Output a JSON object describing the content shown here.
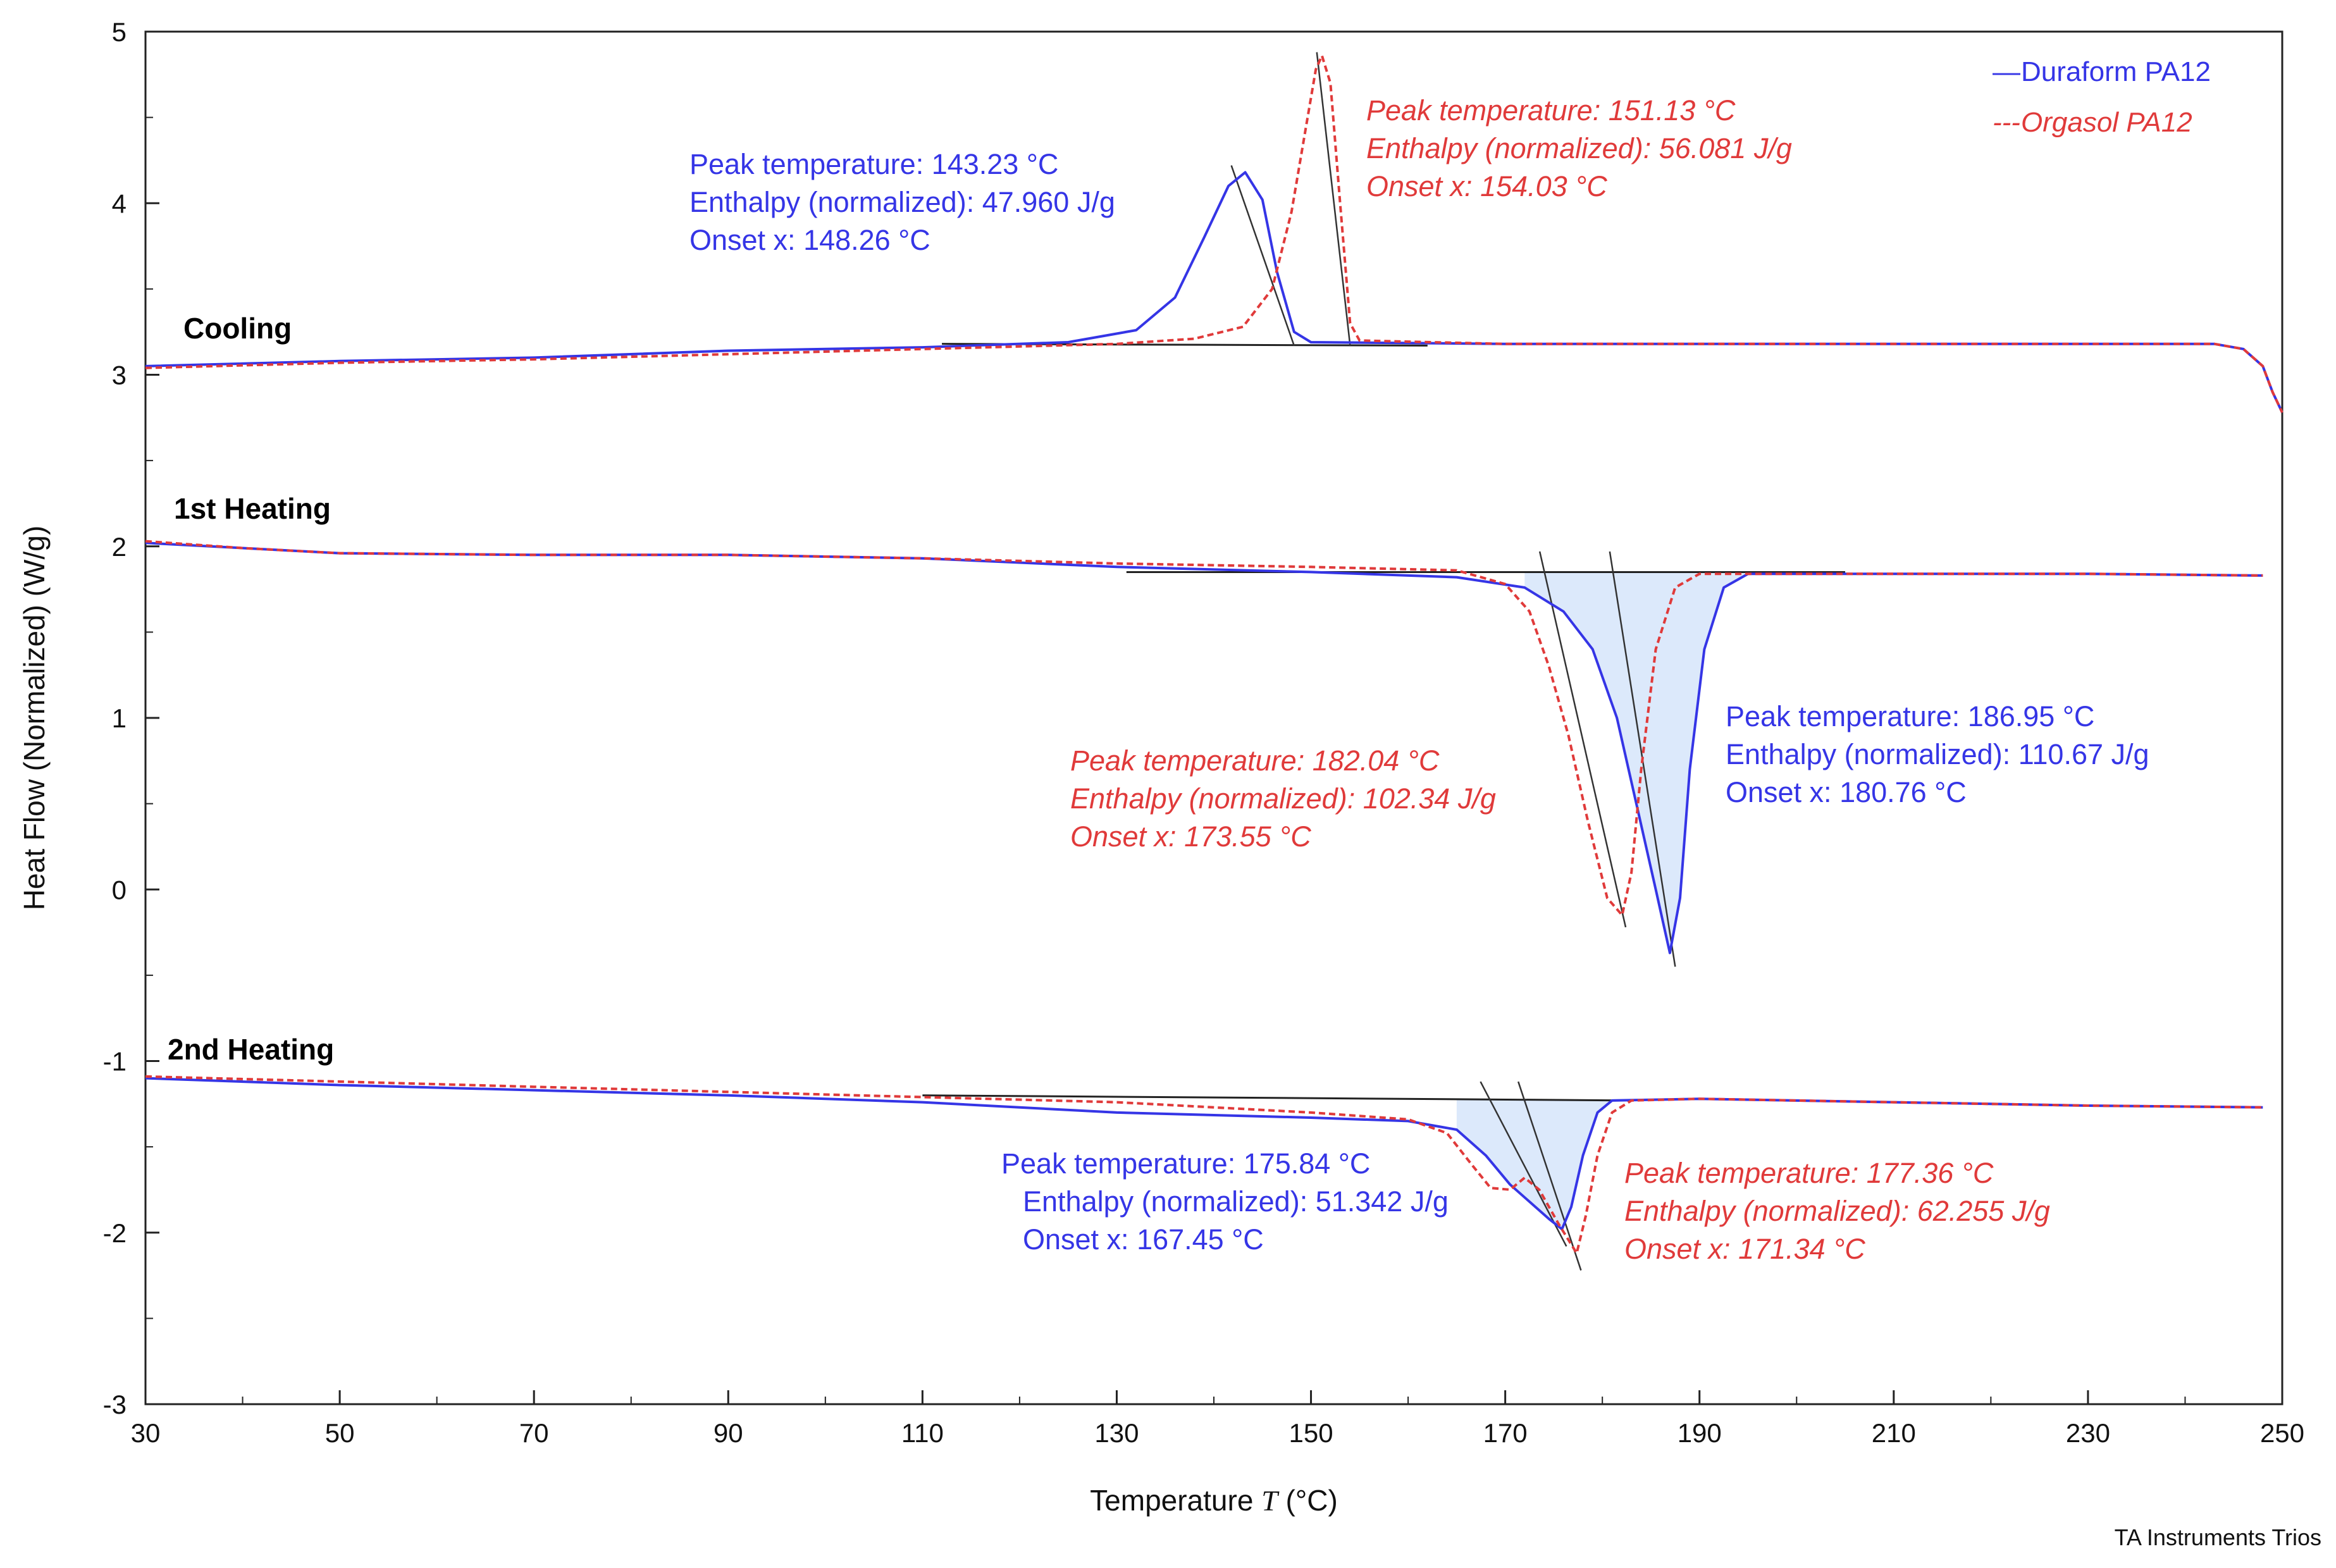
{
  "chart_data": {
    "type": "line",
    "xlabel": "Temperature",
    "xlabel_symbol": "T",
    "xlabel_unit": "(°C)",
    "ylabel": "Heat Flow (Normalized)  (W/g)",
    "xlim": [
      30,
      250
    ],
    "ylim": [
      -3,
      5
    ],
    "x_ticks": [
      30,
      50,
      70,
      90,
      110,
      130,
      150,
      170,
      190,
      210,
      230,
      250
    ],
    "y_ticks": [
      -3,
      -2,
      -1,
      0,
      1,
      2,
      3,
      4,
      5
    ],
    "grid": false,
    "legend_position": "top-right",
    "legend": [
      {
        "marker": "—",
        "label": "Duraform PA12",
        "color": "#3535e6",
        "style": "solid"
      },
      {
        "marker": "---",
        "label": "Orgasol PA12",
        "color": "#e03a3a",
        "style": "dashed"
      }
    ],
    "segment_labels": [
      "Cooling",
      "1st Heating",
      "2nd Heating"
    ],
    "series": [
      {
        "name": "Duraform PA12",
        "segment": "Cooling",
        "color": "#3535e6",
        "points": [
          [
            30,
            3.05
          ],
          [
            50,
            3.08
          ],
          [
            70,
            3.1
          ],
          [
            90,
            3.14
          ],
          [
            110,
            3.16
          ],
          [
            125,
            3.19
          ],
          [
            132,
            3.26
          ],
          [
            136,
            3.45
          ],
          [
            139,
            3.8
          ],
          [
            141.5,
            4.1
          ],
          [
            143.23,
            4.18
          ],
          [
            145,
            4.02
          ],
          [
            146.5,
            3.6
          ],
          [
            148.26,
            3.25
          ],
          [
            150,
            3.19
          ],
          [
            170,
            3.18
          ],
          [
            200,
            3.18
          ],
          [
            230,
            3.18
          ],
          [
            243,
            3.18
          ],
          [
            246,
            3.15
          ],
          [
            248,
            3.05
          ],
          [
            249,
            2.9
          ],
          [
            250,
            2.78
          ]
        ]
      },
      {
        "name": "Orgasol PA12",
        "segment": "Cooling",
        "color": "#e03a3a",
        "points": [
          [
            30,
            3.04
          ],
          [
            50,
            3.07
          ],
          [
            70,
            3.09
          ],
          [
            90,
            3.12
          ],
          [
            110,
            3.15
          ],
          [
            130,
            3.18
          ],
          [
            138,
            3.21
          ],
          [
            143,
            3.28
          ],
          [
            146,
            3.5
          ],
          [
            148,
            3.95
          ],
          [
            149.5,
            4.45
          ],
          [
            150.5,
            4.78
          ],
          [
            151.13,
            4.86
          ],
          [
            152,
            4.7
          ],
          [
            153,
            4.0
          ],
          [
            154.03,
            3.3
          ],
          [
            155,
            3.2
          ],
          [
            170,
            3.18
          ],
          [
            200,
            3.18
          ],
          [
            230,
            3.18
          ],
          [
            243,
            3.18
          ],
          [
            246,
            3.15
          ],
          [
            248,
            3.05
          ],
          [
            249,
            2.9
          ],
          [
            250,
            2.78
          ]
        ]
      },
      {
        "name": "Duraform PA12",
        "segment": "1st Heating",
        "color": "#3535e6",
        "points": [
          [
            30,
            2.02
          ],
          [
            40,
            1.99
          ],
          [
            50,
            1.96
          ],
          [
            70,
            1.95
          ],
          [
            90,
            1.95
          ],
          [
            110,
            1.93
          ],
          [
            130,
            1.88
          ],
          [
            150,
            1.85
          ],
          [
            165,
            1.82
          ],
          [
            172,
            1.76
          ],
          [
            176,
            1.62
          ],
          [
            179,
            1.4
          ],
          [
            181.5,
            1.0
          ],
          [
            183.5,
            0.5
          ],
          [
            185.5,
            0.0
          ],
          [
            186.95,
            -0.37
          ],
          [
            188,
            -0.05
          ],
          [
            189,
            0.7
          ],
          [
            190.5,
            1.4
          ],
          [
            192.5,
            1.76
          ],
          [
            195,
            1.84
          ],
          [
            210,
            1.84
          ],
          [
            230,
            1.84
          ],
          [
            248,
            1.83
          ]
        ]
      },
      {
        "name": "Orgasol PA12",
        "segment": "1st Heating",
        "color": "#e03a3a",
        "points": [
          [
            30,
            2.03
          ],
          [
            40,
            1.99
          ],
          [
            50,
            1.96
          ],
          [
            70,
            1.95
          ],
          [
            90,
            1.95
          ],
          [
            110,
            1.93
          ],
          [
            130,
            1.9
          ],
          [
            150,
            1.88
          ],
          [
            165,
            1.86
          ],
          [
            170,
            1.78
          ],
          [
            172.5,
            1.62
          ],
          [
            174.5,
            1.3
          ],
          [
            176.5,
            0.9
          ],
          [
            178.5,
            0.4
          ],
          [
            180.5,
            -0.05
          ],
          [
            182.04,
            -0.15
          ],
          [
            183,
            0.1
          ],
          [
            184,
            0.7
          ],
          [
            185.5,
            1.4
          ],
          [
            187.5,
            1.76
          ],
          [
            190,
            1.84
          ],
          [
            210,
            1.84
          ],
          [
            230,
            1.84
          ],
          [
            248,
            1.83
          ]
        ]
      },
      {
        "name": "Duraform PA12",
        "segment": "2nd Heating",
        "color": "#3535e6",
        "points": [
          [
            30,
            -1.1
          ],
          [
            50,
            -1.14
          ],
          [
            70,
            -1.17
          ],
          [
            90,
            -1.2
          ],
          [
            110,
            -1.24
          ],
          [
            130,
            -1.3
          ],
          [
            150,
            -1.33
          ],
          [
            160,
            -1.35
          ],
          [
            165,
            -1.4
          ],
          [
            168,
            -1.55
          ],
          [
            170.5,
            -1.72
          ],
          [
            172.5,
            -1.82
          ],
          [
            174.5,
            -1.92
          ],
          [
            175.84,
            -1.98
          ],
          [
            176.8,
            -1.85
          ],
          [
            178,
            -1.55
          ],
          [
            179.5,
            -1.3
          ],
          [
            181,
            -1.23
          ],
          [
            190,
            -1.22
          ],
          [
            210,
            -1.24
          ],
          [
            230,
            -1.26
          ],
          [
            248,
            -1.27
          ]
        ]
      },
      {
        "name": "Orgasol PA12",
        "segment": "2nd Heating",
        "color": "#e03a3a",
        "points": [
          [
            30,
            -1.09
          ],
          [
            50,
            -1.12
          ],
          [
            70,
            -1.15
          ],
          [
            90,
            -1.18
          ],
          [
            110,
            -1.21
          ],
          [
            130,
            -1.24
          ],
          [
            150,
            -1.3
          ],
          [
            160,
            -1.34
          ],
          [
            164,
            -1.42
          ],
          [
            166.5,
            -1.6
          ],
          [
            168.5,
            -1.74
          ],
          [
            170.5,
            -1.75
          ],
          [
            172,
            -1.68
          ],
          [
            173.5,
            -1.75
          ],
          [
            175.5,
            -1.95
          ],
          [
            177.36,
            -2.12
          ],
          [
            178.3,
            -1.9
          ],
          [
            179.5,
            -1.55
          ],
          [
            181,
            -1.3
          ],
          [
            183,
            -1.23
          ],
          [
            190,
            -1.22
          ],
          [
            210,
            -1.24
          ],
          [
            230,
            -1.26
          ],
          [
            248,
            -1.27
          ]
        ]
      }
    ],
    "baselines": [
      {
        "segment": "Cooling",
        "from": [
          112,
          3.18
        ],
        "to": [
          162,
          3.17
        ]
      },
      {
        "segment": "1st Heating",
        "from": [
          131,
          1.85
        ],
        "to": [
          205,
          1.85
        ]
      },
      {
        "segment": "2nd Heating",
        "from": [
          110,
          -1.2
        ],
        "to": [
          183,
          -1.23
        ]
      }
    ],
    "annotations": [
      {
        "segment": "Cooling",
        "series": "Duraform PA12",
        "color": "#3535e6",
        "lines": [
          "Peak temperature: 143.23 °C",
          "Enthalpy (normalized): 47.960 J/g",
          "Onset x: 148.26 °C"
        ]
      },
      {
        "segment": "Cooling",
        "series": "Orgasol PA12",
        "color": "#e03a3a",
        "lines": [
          "Peak temperature: 151.13 °C",
          "Enthalpy (normalized): 56.081 J/g",
          "Onset x: 154.03 °C"
        ]
      },
      {
        "segment": "1st Heating",
        "series": "Duraform PA12",
        "color": "#3535e6",
        "lines": [
          "Peak temperature: 186.95 °C",
          "Enthalpy (normalized): 110.67 J/g",
          "Onset x: 180.76 °C"
        ]
      },
      {
        "segment": "1st Heating",
        "series": "Orgasol PA12",
        "color": "#e03a3a",
        "lines": [
          "Peak temperature: 182.04 °C",
          "Enthalpy (normalized): 102.34 J/g",
          "Onset x: 173.55 °C"
        ]
      },
      {
        "segment": "2nd Heating",
        "series": "Duraform PA12",
        "color": "#3535e6",
        "lines": [
          "Peak temperature: 175.84 °C",
          "Enthalpy (normalized): 51.342 J/g",
          "Onset x: 167.45 °C"
        ]
      },
      {
        "segment": "2nd Heating",
        "series": "Orgasol PA12",
        "color": "#e03a3a",
        "lines": [
          "Peak temperature: 177.36 °C",
          "Enthalpy (normalized): 62.255 J/g",
          "Onset x: 171.34 °C"
        ]
      }
    ],
    "credit": "TA Instruments Trios"
  }
}
